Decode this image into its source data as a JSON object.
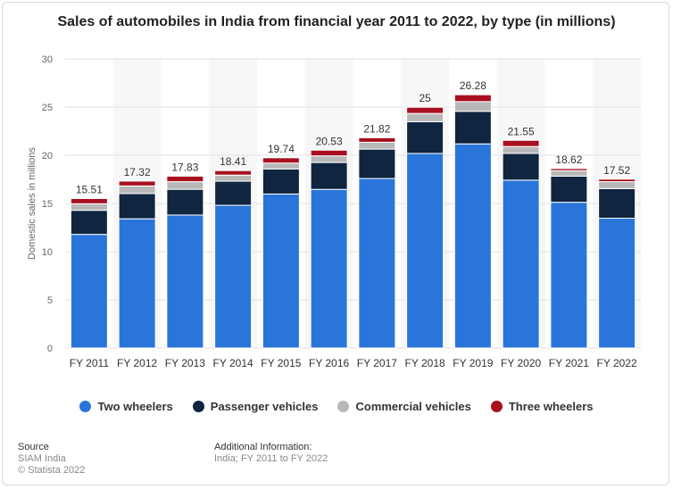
{
  "chart_data": {
    "type": "bar",
    "stacked": true,
    "title": "Sales of automobiles in India from financial year 2011 to 2022, by type (in millions)",
    "xlabel": "",
    "ylabel": "Domestic sales in millions",
    "ylim": [
      0,
      30
    ],
    "yticks": [
      0,
      5,
      10,
      15,
      20,
      25,
      30
    ],
    "grid": true,
    "legend_position": "bottom",
    "categories": [
      "FY 2011",
      "FY 2012",
      "FY 2013",
      "FY 2014",
      "FY 2015",
      "FY 2016",
      "FY 2017",
      "FY 2018",
      "FY 2019",
      "FY 2020",
      "FY 2021",
      "FY 2022"
    ],
    "series": [
      {
        "name": "Two wheelers",
        "color": "#2a75d9",
        "values": [
          11.79,
          13.41,
          13.8,
          14.81,
          15.98,
          16.46,
          17.59,
          20.19,
          21.18,
          17.42,
          15.12,
          13.47
        ]
      },
      {
        "name": "Passenger vehicles",
        "color": "#0f2540",
        "values": [
          2.5,
          2.62,
          2.67,
          2.5,
          2.6,
          2.79,
          3.05,
          3.29,
          3.38,
          2.77,
          2.71,
          3.07
        ]
      },
      {
        "name": "Commercial vehicles",
        "color": "#b8b8b8",
        "values": [
          0.68,
          0.79,
          0.79,
          0.63,
          0.61,
          0.69,
          0.71,
          0.86,
          1.01,
          0.72,
          0.57,
          0.72
        ]
      },
      {
        "name": "Three wheelers",
        "color": "#a8101f",
        "values": [
          0.54,
          0.5,
          0.57,
          0.47,
          0.55,
          0.59,
          0.47,
          0.64,
          0.71,
          0.64,
          0.22,
          0.26
        ]
      }
    ],
    "totals": [
      "15.51",
      "17.32",
      "17.83",
      "18.41",
      "19.74",
      "20.53",
      "21.82",
      "25",
      "26.28",
      "21.55",
      "18.62",
      "17.52"
    ]
  },
  "footer": {
    "source_heading": "Source",
    "source_lines": [
      "SIAM India",
      "© Statista 2022"
    ],
    "additional_heading": "Additional Information:",
    "additional_text": "India; FY 2011 to FY 2022"
  }
}
